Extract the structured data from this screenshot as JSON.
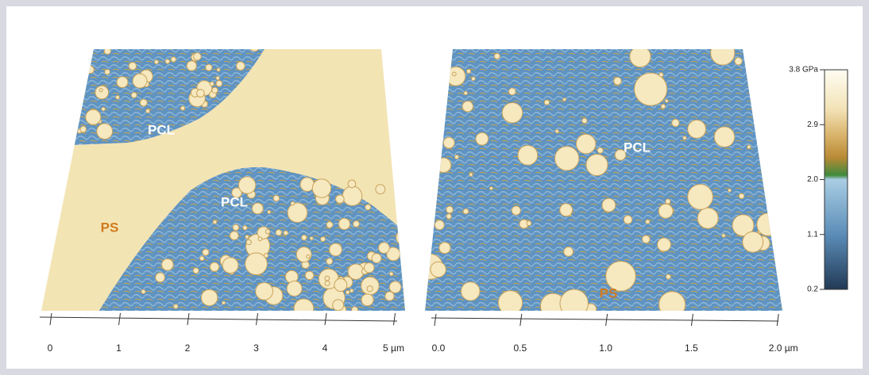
{
  "figure": {
    "left": {
      "labels": [
        "PCL",
        "PCL",
        "PS"
      ],
      "axis_labels": [
        "0",
        "1",
        "2",
        "3",
        "4",
        "5 µm"
      ]
    },
    "right": {
      "labels": [
        "PCL",
        "PS"
      ],
      "axis_labels": [
        "0.0",
        "0.5",
        "1.0",
        "1.5",
        "2.0 µm"
      ]
    },
    "colorbar": {
      "labels": [
        "3.8 GPa",
        "2.9",
        "2.0",
        "1.1",
        "0.2"
      ]
    }
  }
}
